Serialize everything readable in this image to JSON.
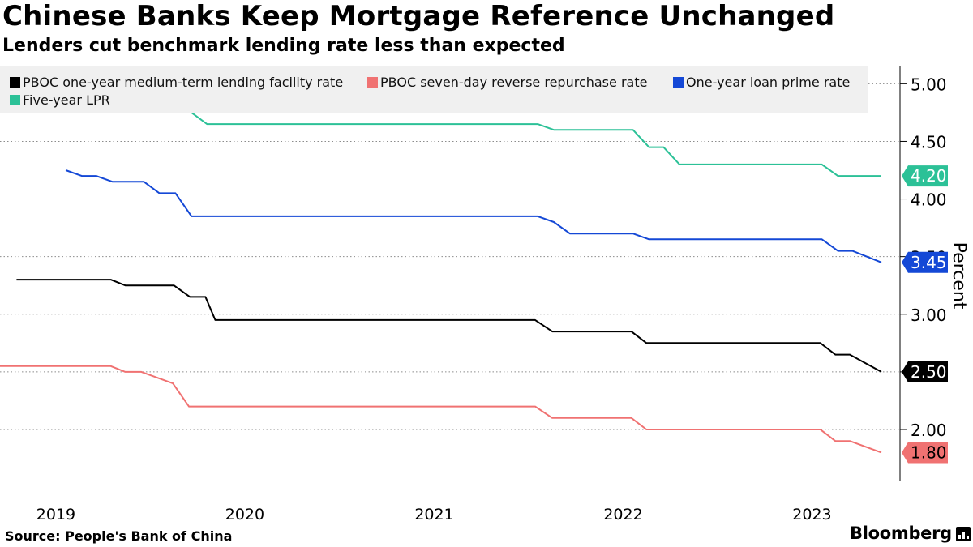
{
  "title": "Chinese Banks Keep Mortgage Reference Unchanged",
  "subtitle": "Lenders cut benchmark lending rate less than expected",
  "source": "Source: People's Bank of China",
  "brand": "Bloomberg",
  "brand_icon": "bloomberg-terminal-icon",
  "legend": [
    {
      "label": "PBOC one-year medium-term lending facility rate",
      "color": "#000000"
    },
    {
      "label": "PBOC seven-day reverse repurchase rate",
      "color": "#f07272"
    },
    {
      "label": "One-year loan prime rate",
      "color": "#1448d6"
    },
    {
      "label": "Five-year LPR",
      "color": "#2cc197"
    }
  ],
  "chart_data": {
    "type": "line",
    "title": "Chinese Banks Keep Mortgage Reference Unchanged",
    "subtitle": "Lenders cut benchmark lending rate less than expected",
    "ylabel": "Percent",
    "ylim": [
      1.55,
      5.15
    ],
    "xlim": [
      "2018-09-15",
      "2023-06-20"
    ],
    "y_ticks": [
      2.0,
      2.5,
      3.0,
      3.5,
      4.0,
      4.5,
      5.0
    ],
    "y_tick_labels": [
      "2.00",
      "2.50",
      "3.00",
      "3.50",
      "4.00",
      "4.50",
      "5.00"
    ],
    "x_ticks": [
      {
        "date": "2019-01-01",
        "label": "2019"
      },
      {
        "date": "2020-01-01",
        "label": "2020"
      },
      {
        "date": "2021-01-01",
        "label": "2021"
      },
      {
        "date": "2022-01-01",
        "label": "2022"
      },
      {
        "date": "2023-01-01",
        "label": "2023"
      }
    ],
    "grid": "horizontal-dotted",
    "y_axis_position": "right",
    "legend_position": "top",
    "series": [
      {
        "name": "PBOC one-year medium-term lending facility rate",
        "color": "#000000",
        "end_label": "2.50",
        "points": [
          [
            "2018-10-17",
            3.3
          ],
          [
            "2019-04-17",
            3.3
          ],
          [
            "2019-05-15",
            3.25
          ],
          [
            "2019-08-17",
            3.25
          ],
          [
            "2019-09-17",
            3.15
          ],
          [
            "2019-10-17",
            3.15
          ],
          [
            "2019-11-05",
            2.95
          ],
          [
            "2020-07-15",
            2.95
          ],
          [
            "2021-07-15",
            2.95
          ],
          [
            "2021-08-17",
            2.85
          ],
          [
            "2022-01-17",
            2.85
          ],
          [
            "2022-02-15",
            2.75
          ],
          [
            "2022-07-15",
            2.75
          ],
          [
            "2023-01-17",
            2.75
          ],
          [
            "2023-02-15",
            2.65
          ],
          [
            "2023-03-15",
            2.65
          ],
          [
            "2023-05-15",
            2.5
          ]
        ]
      },
      {
        "name": "PBOC seven-day reverse repurchase rate",
        "color": "#f07272",
        "end_label": "1.80",
        "points": [
          [
            "2018-09-15",
            2.55
          ],
          [
            "2019-04-17",
            2.55
          ],
          [
            "2019-05-15",
            2.5
          ],
          [
            "2019-06-15",
            2.5
          ],
          [
            "2019-08-15",
            2.4
          ],
          [
            "2019-09-15",
            2.2
          ],
          [
            "2020-07-15",
            2.2
          ],
          [
            "2021-07-15",
            2.2
          ],
          [
            "2021-08-17",
            2.1
          ],
          [
            "2022-01-17",
            2.1
          ],
          [
            "2022-02-15",
            2.0
          ],
          [
            "2022-07-15",
            2.0
          ],
          [
            "2023-01-17",
            2.0
          ],
          [
            "2023-02-15",
            1.9
          ],
          [
            "2023-03-15",
            1.9
          ],
          [
            "2023-05-15",
            1.8
          ]
        ]
      },
      {
        "name": "One-year loan prime rate",
        "color": "#1448d6",
        "end_label": "3.45",
        "points": [
          [
            "2019-01-20",
            4.25
          ],
          [
            "2019-02-20",
            4.2
          ],
          [
            "2019-03-20",
            4.2
          ],
          [
            "2019-04-20",
            4.15
          ],
          [
            "2019-06-20",
            4.15
          ],
          [
            "2019-07-20",
            4.05
          ],
          [
            "2019-08-20",
            4.05
          ],
          [
            "2019-09-20",
            3.85
          ],
          [
            "2020-07-20",
            3.85
          ],
          [
            "2021-07-20",
            3.85
          ],
          [
            "2021-08-20",
            3.8
          ],
          [
            "2021-09-20",
            3.7
          ],
          [
            "2022-01-20",
            3.7
          ],
          [
            "2022-02-20",
            3.65
          ],
          [
            "2022-07-20",
            3.65
          ],
          [
            "2023-01-20",
            3.65
          ],
          [
            "2023-02-20",
            3.55
          ],
          [
            "2023-03-20",
            3.55
          ],
          [
            "2023-05-15",
            3.45
          ]
        ]
      },
      {
        "name": "Five-year LPR",
        "color": "#2cc197",
        "end_label": "4.20",
        "points": [
          [
            "2019-01-20",
            4.85
          ],
          [
            "2019-04-20",
            4.85
          ],
          [
            "2019-05-20",
            4.8
          ],
          [
            "2019-07-20",
            4.8
          ],
          [
            "2019-08-20",
            4.75
          ],
          [
            "2019-09-20",
            4.75
          ],
          [
            "2019-10-20",
            4.65
          ],
          [
            "2020-07-20",
            4.65
          ],
          [
            "2021-07-20",
            4.65
          ],
          [
            "2021-08-20",
            4.6
          ],
          [
            "2022-01-20",
            4.6
          ],
          [
            "2022-02-20",
            4.45
          ],
          [
            "2022-03-20",
            4.45
          ],
          [
            "2022-04-20",
            4.3
          ],
          [
            "2022-07-20",
            4.3
          ],
          [
            "2023-01-20",
            4.3
          ],
          [
            "2023-02-20",
            4.2
          ],
          [
            "2023-03-20",
            4.2
          ],
          [
            "2023-05-15",
            4.2
          ]
        ]
      }
    ]
  }
}
